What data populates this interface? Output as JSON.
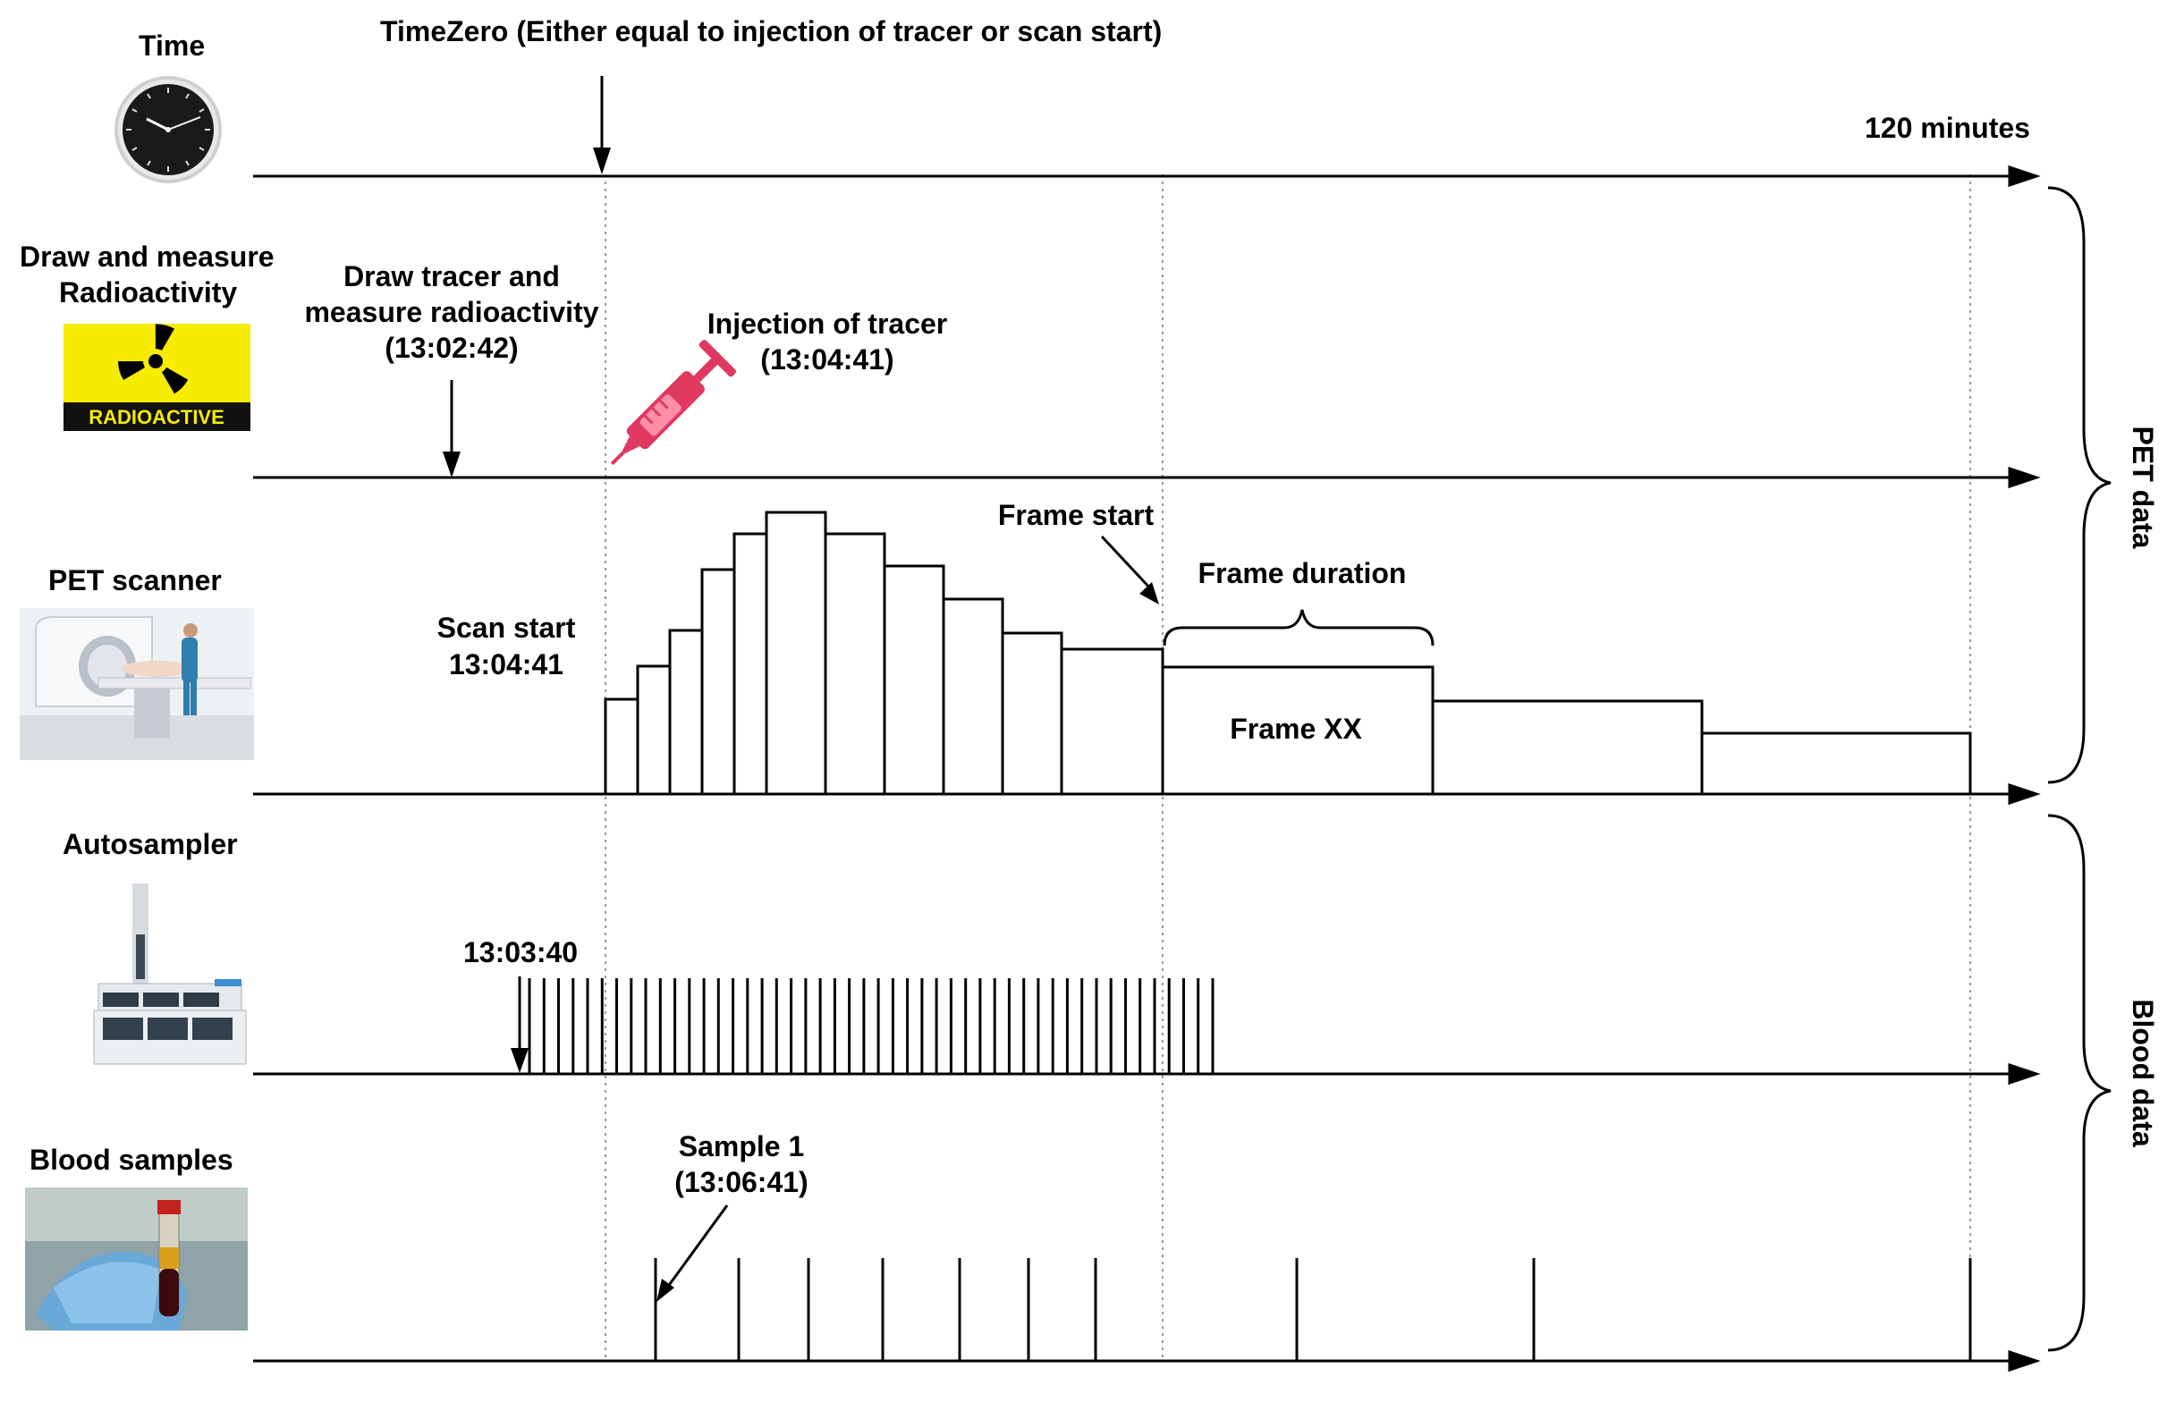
{
  "top_title": "TimeZero (Either equal to injection of tracer or scan start)",
  "end_label": "120 minutes",
  "rows": {
    "time": {
      "label": "Time",
      "icon": "clock-icon"
    },
    "radio": {
      "label_line1": "Draw and measure",
      "label_line2": "Radioactivity",
      "badge_text": "RADIOACTIVE",
      "icon": "radiation-icon",
      "draw_line1": "Draw tracer and",
      "draw_line2": "measure radioactivity",
      "draw_line3": "(13:02:42)",
      "inject_line1": "Injection of tracer",
      "inject_line2": "(13:04:41)",
      "syringe_icon": "syringe-icon"
    },
    "pet": {
      "label": "PET scanner",
      "icon": "pet-scanner-icon",
      "scan_line1": "Scan start",
      "scan_line2": "13:04:41",
      "frame_start": "Frame start",
      "frame_duration": "Frame duration",
      "frame_label": "Frame XX"
    },
    "auto": {
      "label": "Autosampler",
      "icon": "autosampler-icon",
      "start_time": "13:03:40"
    },
    "blood": {
      "label": "Blood samples",
      "icon": "blood-tube-icon",
      "sample_line1": "Sample 1",
      "sample_line2": "(13:06:41)"
    }
  },
  "brackets": {
    "pet_data": "PET data",
    "blood_data": "Blood data"
  },
  "colors": {
    "radioactive_yellow": "#f6ec00",
    "syringe": "#e0385f",
    "guide_line": "#999999"
  }
}
